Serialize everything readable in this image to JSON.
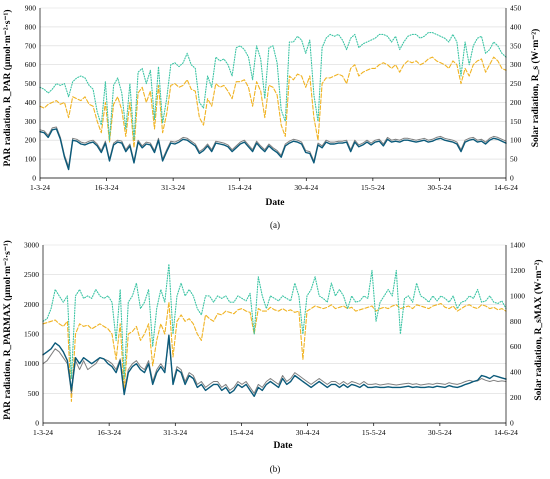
{
  "chart_data": [
    {
      "type": "line",
      "panel_label": "(a)",
      "xlabel": "Date",
      "ylabel_left": "PAR radiation, R_PAR (µmol·m⁻²·s⁻¹)",
      "ylabel_right": "Solar radiation, R_s (W·m⁻²)",
      "x_ticks": [
        "1-3-24",
        "16-3-24",
        "31-3-24",
        "15-4-24",
        "30-4-24",
        "15-5-24",
        "30-5-24",
        "14-6-24"
      ],
      "ylim_left": [
        0,
        900
      ],
      "y_ticks_left": [
        0,
        100,
        200,
        300,
        400,
        500,
        600,
        700,
        800,
        900
      ],
      "ylim_right": [
        0,
        450
      ],
      "y_ticks_right": [
        0,
        50,
        100,
        150,
        200,
        250,
        300,
        350,
        400,
        450
      ],
      "series": [
        {
          "axis": "left",
          "color": "#7f7f7f",
          "style": "solid",
          "values": [
            255,
            250,
            225,
            265,
            270,
            215,
            120,
            60,
            210,
            205,
            190,
            185,
            195,
            200,
            180,
            145,
            195,
            100,
            185,
            200,
            195,
            150,
            180,
            90,
            200,
            170,
            190,
            185,
            145,
            210,
            100,
            150,
            195,
            190,
            200,
            215,
            210,
            195,
            180,
            140,
            155,
            180,
            150,
            195,
            190,
            185,
            175,
            150,
            170,
            190,
            200,
            175,
            150,
            195,
            170,
            150,
            180,
            160,
            145,
            120,
            180,
            195,
            205,
            200,
            190,
            145,
            140,
            90,
            185,
            170,
            200,
            190,
            190,
            195,
            195,
            200,
            150,
            200,
            175,
            185,
            200,
            185,
            200,
            205,
            180,
            215,
            200,
            205,
            200,
            210,
            210,
            205,
            200,
            205,
            210,
            200,
            205,
            215,
            220,
            210,
            205,
            200,
            190,
            150,
            200,
            210,
            215,
            200,
            205,
            190,
            210,
            220,
            215,
            205,
            195
          ]
        },
        {
          "axis": "left",
          "color": "#0b5a7a",
          "style": "solid",
          "values": [
            245,
            240,
            215,
            255,
            260,
            205,
            110,
            45,
            200,
            195,
            180,
            175,
            185,
            190,
            170,
            135,
            185,
            90,
            175,
            190,
            185,
            140,
            170,
            80,
            190,
            160,
            180,
            175,
            135,
            200,
            90,
            140,
            185,
            180,
            190,
            205,
            200,
            185,
            170,
            130,
            145,
            170,
            140,
            185,
            180,
            175,
            165,
            140,
            160,
            180,
            190,
            165,
            140,
            185,
            160,
            140,
            170,
            150,
            135,
            110,
            170,
            185,
            195,
            190,
            180,
            135,
            130,
            80,
            175,
            160,
            190,
            180,
            180,
            185,
            185,
            190,
            140,
            190,
            165,
            175,
            190,
            175,
            190,
            195,
            170,
            205,
            190,
            195,
            190,
            200,
            200,
            195,
            190,
            195,
            200,
            190,
            195,
            205,
            210,
            200,
            195,
            190,
            180,
            140,
            190,
            200,
            205,
            190,
            195,
            180,
            200,
            210,
            205,
            195,
            185
          ]
        },
        {
          "axis": "right",
          "color": "#f0b323",
          "style": "dashed",
          "values": [
            190,
            185,
            195,
            200,
            205,
            195,
            200,
            160,
            215,
            210,
            205,
            215,
            195,
            190,
            150,
            120,
            200,
            95,
            195,
            215,
            180,
            110,
            200,
            80,
            225,
            240,
            200,
            230,
            130,
            245,
            120,
            170,
            245,
            250,
            240,
            245,
            260,
            235,
            230,
            160,
            140,
            210,
            190,
            250,
            240,
            245,
            230,
            210,
            255,
            255,
            260,
            240,
            190,
            255,
            230,
            160,
            245,
            240,
            220,
            140,
            110,
            270,
            260,
            275,
            270,
            240,
            270,
            160,
            100,
            250,
            265,
            265,
            270,
            275,
            270,
            250,
            290,
            300,
            270,
            280,
            285,
            290,
            290,
            300,
            305,
            300,
            290,
            300,
            280,
            300,
            310,
            305,
            310,
            300,
            305,
            315,
            320,
            310,
            305,
            300,
            290,
            310,
            300,
            250,
            290,
            270,
            300,
            310,
            315,
            280,
            300,
            320,
            310,
            290,
            285
          ]
        },
        {
          "axis": "right",
          "color": "#3cc4a4",
          "style": "dotted",
          "values": [
            240,
            235,
            225,
            235,
            250,
            245,
            250,
            215,
            255,
            265,
            270,
            265,
            245,
            235,
            175,
            140,
            255,
            100,
            245,
            265,
            225,
            130,
            250,
            100,
            280,
            290,
            250,
            285,
            155,
            295,
            145,
            210,
            300,
            305,
            295,
            305,
            330,
            300,
            290,
            200,
            185,
            270,
            240,
            320,
            310,
            315,
            300,
            270,
            345,
            350,
            340,
            320,
            260,
            350,
            315,
            210,
            345,
            350,
            305,
            180,
            150,
            360,
            360,
            375,
            365,
            330,
            365,
            220,
            150,
            345,
            370,
            380,
            375,
            380,
            365,
            340,
            370,
            380,
            345,
            355,
            360,
            365,
            370,
            380,
            380,
            375,
            360,
            375,
            340,
            360,
            375,
            380,
            380,
            370,
            375,
            385,
            385,
            380,
            375,
            370,
            360,
            380,
            360,
            270,
            360,
            300,
            350,
            370,
            375,
            330,
            340,
            360,
            350,
            330,
            320
          ]
        }
      ]
    },
    {
      "type": "line",
      "panel_label": "(b)",
      "xlabel": "Date",
      "ylabel_left": "PAR radiation, R_PARMAX (µmol·m⁻²·s⁻¹)",
      "ylabel_right": "Solar radiation, R_sMAX (W·m⁻²)",
      "x_ticks": [
        "1-3-24",
        "16-3-24",
        "31-3-24",
        "15-4-24",
        "30-4-24",
        "15-5-24",
        "30-5-24",
        "14-6-24"
      ],
      "ylim_left": [
        0,
        3000
      ],
      "y_ticks_left": [
        0,
        500,
        1000,
        1500,
        2000,
        2500,
        3000
      ],
      "ylim_right": [
        0,
        1400
      ],
      "y_ticks_right": [
        0,
        200,
        400,
        600,
        800,
        1000,
        1200,
        1400
      ],
      "series": [
        {
          "axis": "left",
          "color": "#7f7f7f",
          "style": "solid",
          "values": [
            1000,
            1050,
            1150,
            1250,
            1200,
            1100,
            1000,
            500,
            1050,
            900,
            1050,
            900,
            950,
            1000,
            1100,
            1080,
            1050,
            1000,
            900,
            1080,
            500,
            900,
            1000,
            1050,
            950,
            900,
            1050,
            700,
            900,
            1000,
            900,
            1400,
            700,
            950,
            900,
            700,
            850,
            800,
            650,
            700,
            600,
            650,
            700,
            700,
            600,
            650,
            550,
            600,
            700,
            650,
            700,
            600,
            500,
            650,
            600,
            700,
            750,
            700,
            650,
            800,
            700,
            750,
            850,
            800,
            750,
            700,
            650,
            700,
            750,
            700,
            650,
            700,
            700,
            650,
            700,
            650,
            700,
            680,
            650,
            700,
            650,
            650,
            660,
            640,
            650,
            660,
            650,
            640,
            650,
            660,
            670,
            650,
            660,
            640,
            650,
            660,
            650,
            670,
            660,
            650,
            680,
            660,
            650,
            670,
            700,
            720,
            700,
            710,
            750,
            720,
            700,
            720,
            700,
            710,
            700
          ]
        },
        {
          "axis": "left",
          "color": "#0b5a7a",
          "style": "solid",
          "values": [
            1150,
            1200,
            1250,
            1350,
            1300,
            1200,
            1050,
            550,
            1100,
            1000,
            1100,
            1050,
            1000,
            1050,
            1100,
            1080,
            1000,
            950,
            850,
            1050,
            480,
            850,
            950,
            1000,
            900,
            850,
            1000,
            650,
            850,
            950,
            850,
            1480,
            650,
            900,
            850,
            650,
            800,
            750,
            600,
            650,
            550,
            600,
            650,
            650,
            550,
            600,
            500,
            550,
            650,
            600,
            650,
            550,
            450,
            600,
            550,
            650,
            700,
            650,
            600,
            750,
            650,
            700,
            800,
            750,
            700,
            650,
            600,
            650,
            700,
            650,
            600,
            650,
            650,
            600,
            650,
            600,
            650,
            630,
            600,
            650,
            600,
            600,
            610,
            600,
            600,
            610,
            600,
            600,
            600,
            610,
            620,
            600,
            610,
            600,
            600,
            610,
            600,
            620,
            610,
            600,
            630,
            610,
            600,
            620,
            650,
            670,
            700,
            720,
            800,
            780,
            750,
            800,
            780,
            760,
            740
          ]
        },
        {
          "axis": "right",
          "color": "#f0b323",
          "style": "dashed",
          "values": [
            780,
            790,
            800,
            810,
            780,
            760,
            800,
            170,
            700,
            780,
            760,
            770,
            740,
            760,
            780,
            760,
            740,
            700,
            500,
            780,
            250,
            700,
            720,
            760,
            650,
            700,
            780,
            450,
            650,
            780,
            700,
            950,
            520,
            800,
            850,
            800,
            820,
            780,
            700,
            650,
            850,
            820,
            800,
            860,
            850,
            880,
            870,
            860,
            890,
            900,
            880,
            870,
            700,
            900,
            880,
            880,
            910,
            890,
            880,
            900,
            880,
            890,
            870,
            880,
            500,
            880,
            900,
            920,
            910,
            900,
            910,
            930,
            900,
            910,
            920,
            900,
            910,
            880,
            890,
            900,
            910,
            920,
            880,
            900,
            910,
            900,
            920,
            930,
            900,
            910,
            920,
            900,
            930,
            920,
            910,
            900,
            920,
            930,
            940,
            910,
            900,
            920,
            880,
            900,
            920,
            930,
            910,
            900,
            930,
            920,
            900,
            910,
            890,
            900,
            880
          ]
        },
        {
          "axis": "right",
          "color": "#3cc4a4",
          "style": "dotted",
          "values": [
            800,
            820,
            900,
            1050,
            1000,
            950,
            1000,
            350,
            1000,
            1050,
            980,
            1000,
            980,
            1050,
            1000,
            980,
            1000,
            950,
            650,
            1050,
            350,
            950,
            1000,
            1100,
            900,
            950,
            1050,
            600,
            900,
            1050,
            950,
            1250,
            700,
            1000,
            1100,
            1000,
            1050,
            1000,
            900,
            850,
            1000,
            1000,
            950,
            1000,
            980,
            1000,
            950,
            950,
            1000,
            980,
            960,
            1020,
            700,
            1150,
            1000,
            900,
            1000,
            980,
            960,
            1000,
            980,
            960,
            1100,
            1000,
            700,
            1000,
            1050,
            1150,
            1000,
            980,
            950,
            1100,
            1000,
            1050,
            1000,
            900,
            1000,
            950,
            960,
            1000,
            980,
            1200,
            800,
            950,
            1000,
            1050,
            1000,
            1200,
            700,
            980,
            1000,
            950,
            1100,
            1000,
            980,
            950,
            1000,
            960,
            1000,
            980,
            950,
            1000,
            900,
            950,
            960,
            1000,
            980,
            1050,
            950,
            960,
            1000,
            950,
            940,
            960,
            900
          ]
        }
      ]
    }
  ]
}
